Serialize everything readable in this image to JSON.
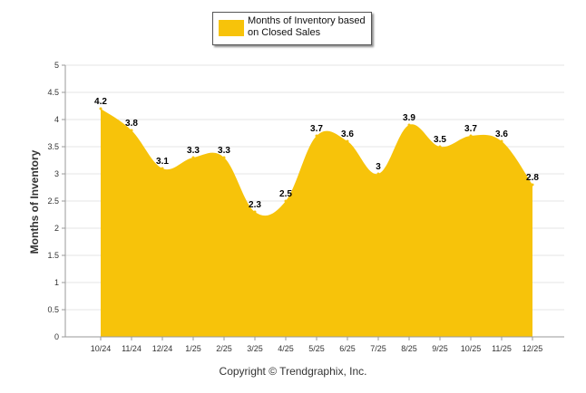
{
  "legend": {
    "label": "Months of Inventory based on Closed Sales"
  },
  "footer": {
    "copyright": "Copyright © Trendgraphix, Inc."
  },
  "colors": {
    "area_fill": "#F7C30A",
    "grid": "#e6e6e6",
    "axis": "#9a9a9a"
  },
  "chart_data": {
    "type": "area",
    "title": "",
    "xlabel": "",
    "ylabel": "Months of Inventory",
    "ylim": [
      0,
      5
    ],
    "yticks": [
      "0",
      "0.5",
      "1",
      "1.5",
      "2",
      "2.5",
      "3",
      "3.5",
      "4",
      "4.5",
      "5"
    ],
    "categories": [
      "10/24",
      "11/24",
      "12/24",
      "1/25",
      "2/25",
      "3/25",
      "4/25",
      "5/25",
      "6/25",
      "7/25",
      "8/25",
      "9/25",
      "10/25",
      "11/25",
      "12/25"
    ],
    "series": [
      {
        "name": "Months of Inventory based on Closed Sales",
        "values": [
          4.2,
          3.8,
          3.1,
          3.3,
          3.3,
          2.3,
          2.5,
          3.7,
          3.6,
          3,
          3.9,
          3.5,
          3.7,
          3.6,
          2.8
        ],
        "data_labels": [
          "4.2",
          "3.8",
          "3.1",
          "3.3",
          "3.3",
          "2.3",
          "2.5",
          "3.7",
          "3.6",
          "3",
          "3.9",
          "3.5",
          "3.7",
          "3.6",
          "2.8"
        ]
      }
    ],
    "grid": true,
    "legend_position": "top-center"
  }
}
